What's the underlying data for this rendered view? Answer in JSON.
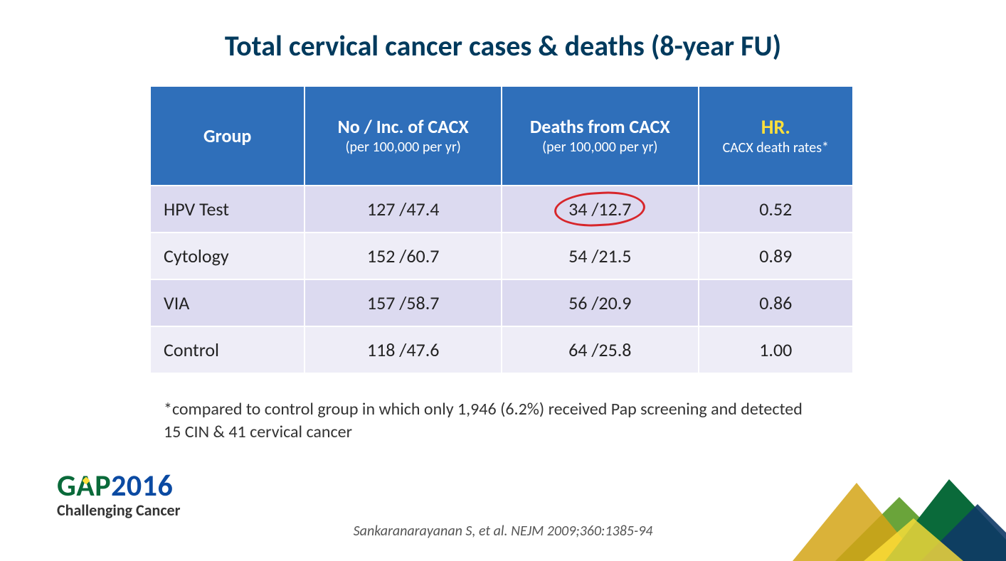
{
  "title": "Total cervical cancer cases & deaths (8-year FU)",
  "table": {
    "header_bg": "#2f6fba",
    "header_text_color": "#ffffff",
    "hr_highlight_color": "#ffe03a",
    "row_odd_bg": "#dcdaf0",
    "row_even_bg": "#eeedf7",
    "cell_text_color": "#222222",
    "columns": [
      {
        "label": "Group",
        "sub": ""
      },
      {
        "label": "No / Inc. of CACX",
        "sub": "(per 100,000 per yr)"
      },
      {
        "label": "Deaths from CACX",
        "sub": "(per 100,000 per yr)"
      },
      {
        "label": "HR.",
        "sub": "CACX death rates*"
      }
    ],
    "col_widths_pct": [
      22,
      28,
      28,
      22
    ],
    "rows": [
      {
        "group": "HPV Test",
        "inc": "127 /47.4",
        "deaths": "34 /12.7",
        "hr": "0.52",
        "circle_deaths": true
      },
      {
        "group": "Cytology",
        "inc": "152 /60.7",
        "deaths": "54 /21.5",
        "hr": "0.89",
        "circle_deaths": false
      },
      {
        "group": "VIA",
        "inc": "157 /58.7",
        "deaths": "56 /20.9",
        "hr": "0.86",
        "circle_deaths": false
      },
      {
        "group": "Control",
        "inc": "118 /47.6",
        "deaths": "64 /25.8",
        "hr": "1.00",
        "circle_deaths": false
      }
    ],
    "circle_stroke": "#d7262b"
  },
  "footnote": "*compared to control group in which only 1,946 (6.2%) received Pap screening and detected 15 CIN & 41 cervical cancer",
  "logo": {
    "name": "GAP",
    "year": "2016",
    "tagline": "Challenging Cancer",
    "green": "#0a6a3a",
    "blue": "#0b4aa2",
    "accent": "#ffe03a"
  },
  "citation": "Sankaranarayanan S, et al. NEJM 2009;360:1385-94",
  "decor_colors": {
    "dark_green": "#0a6a3a",
    "mid_green": "#6aa43a",
    "gold": "#d4a416",
    "navy": "#0e3a66"
  }
}
